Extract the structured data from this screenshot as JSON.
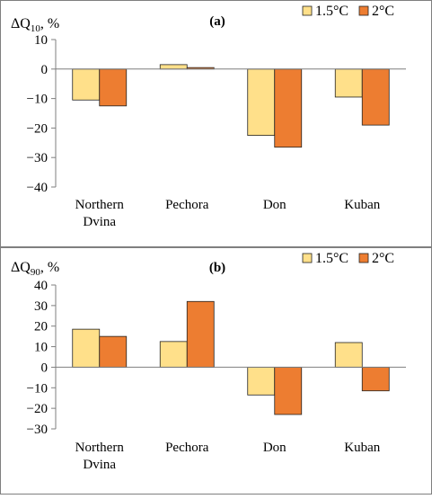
{
  "chart_data": [
    {
      "type": "bar",
      "panel_label": "(a)",
      "ylabel_main": "ΔQ",
      "ylabel_sub": "10",
      "ylabel_tail": ", %",
      "categories": [
        [
          "Northern",
          "Dvina"
        ],
        [
          "Pechora"
        ],
        [
          "Don"
        ],
        [
          "Kuban"
        ]
      ],
      "series": [
        {
          "name": "1.5°C",
          "color": "#FFE08A",
          "values": [
            -10.5,
            1.5,
            -22.5,
            -9.5
          ]
        },
        {
          "name": "2°C",
          "color": "#ED7D31",
          "values": [
            -12.5,
            0.5,
            -26.5,
            -19.0
          ]
        }
      ],
      "ylim": [
        -40,
        10
      ],
      "yticks": [
        10,
        0,
        -10,
        -20,
        -30,
        -40
      ],
      "ytick_labels": [
        "10",
        "0",
        "−10",
        "−20",
        "−30",
        "−40"
      ],
      "legend": "top-right",
      "grid": false
    },
    {
      "type": "bar",
      "panel_label": "(b)",
      "ylabel_main": "ΔQ",
      "ylabel_sub": "90",
      "ylabel_tail": ", %",
      "categories": [
        [
          "Northern",
          "Dvina"
        ],
        [
          "Pechora"
        ],
        [
          "Don"
        ],
        [
          "Kuban"
        ]
      ],
      "series": [
        {
          "name": "1.5°C",
          "color": "#FFE08A",
          "values": [
            18.5,
            12.5,
            -13.5,
            12.0
          ]
        },
        {
          "name": "2°C",
          "color": "#ED7D31",
          "values": [
            15.0,
            32.0,
            -23.0,
            -11.5
          ]
        }
      ],
      "ylim": [
        -30,
        40
      ],
      "yticks": [
        40,
        30,
        20,
        10,
        0,
        -10,
        -20,
        -30
      ],
      "ytick_labels": [
        "40",
        "30",
        "20",
        "10",
        "0",
        "−10",
        "−20",
        "−30"
      ],
      "legend": "top-right",
      "grid": false
    }
  ]
}
